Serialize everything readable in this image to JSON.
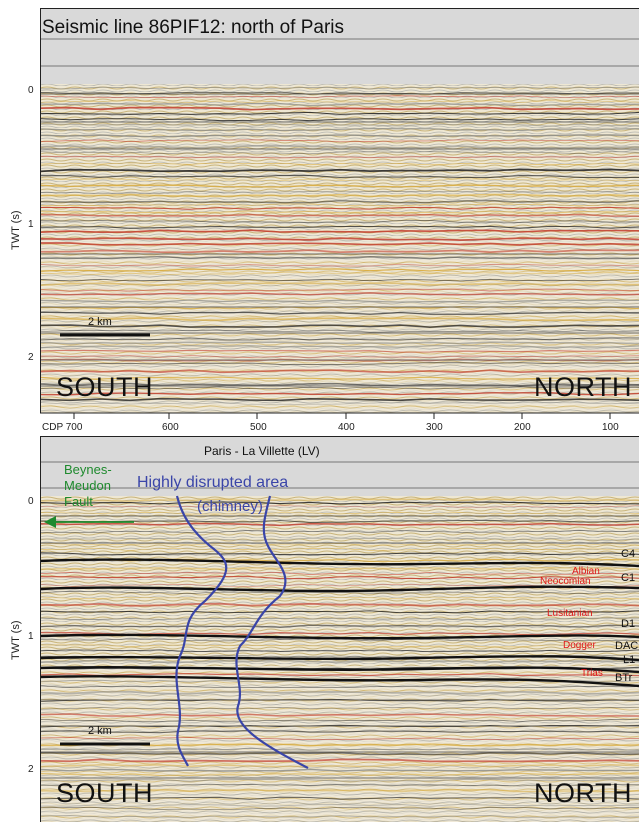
{
  "top_panel": {
    "title": "Seismic line 86PIF12: north of Paris",
    "y_axis_label": "TWT (s)",
    "y_ticks": [
      "0",
      "1",
      "2"
    ],
    "scale_bar": "2 km",
    "south": "SOUTH",
    "north": "NORTH"
  },
  "cdp_axis": {
    "ticks": [
      "CDP 700",
      "600",
      "500",
      "400",
      "300",
      "200",
      "100"
    ],
    "location": "Paris - La Villette (LV)"
  },
  "bottom_panel": {
    "y_axis_label": "TWT (s)",
    "y_ticks": [
      "0",
      "1",
      "2"
    ],
    "fault_label": [
      "Beynes-",
      "Meudon",
      "Fault"
    ],
    "disrupted_label": "Highly disrupted area",
    "chimney_label": "(chimney)",
    "scale_bar": "2 km",
    "south": "SOUTH",
    "north": "NORTH",
    "horizons": [
      "C4",
      "C1",
      "D1",
      "DAC",
      "L1",
      "BTr"
    ],
    "stratigraphy": [
      "Albian",
      "Neocomian",
      "Lusitanian",
      "Dogger",
      "Trias"
    ]
  },
  "colors": {
    "fault": "#1f8a2e",
    "chimney": "#3a45a8",
    "strat": "#e01818"
  }
}
